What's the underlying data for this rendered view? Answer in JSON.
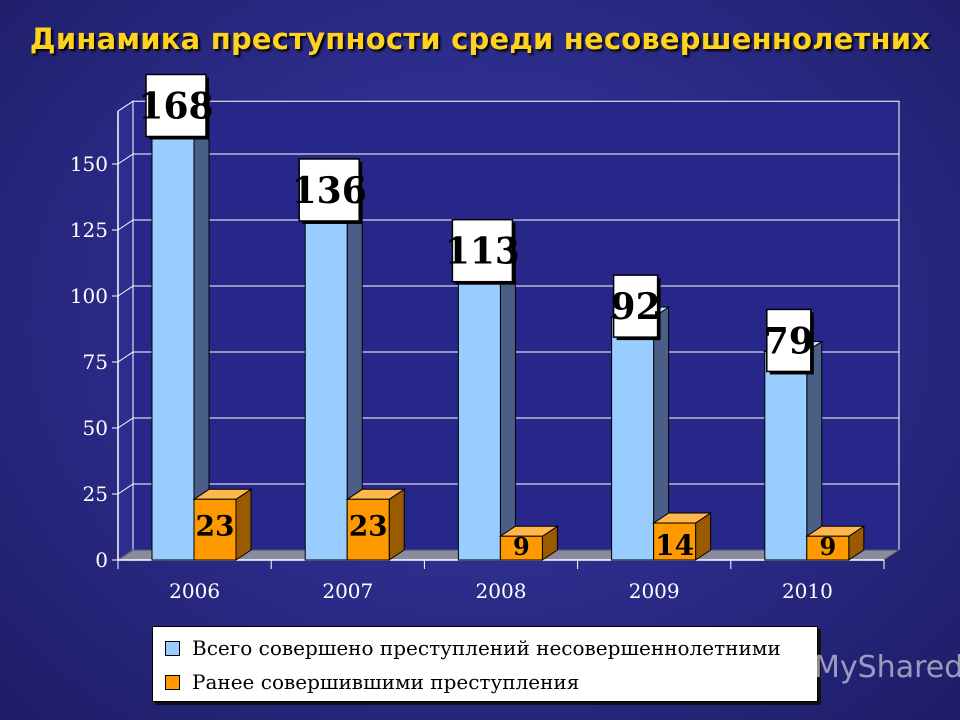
{
  "title": "Динамика преступности среди несовершеннолетних",
  "chart_data": {
    "type": "bar",
    "categories": [
      "2006",
      "2007",
      "2008",
      "2009",
      "2010"
    ],
    "series": [
      {
        "name": "Всего совершено преступлений несовершеннолетними",
        "values": [
          168,
          136,
          113,
          92,
          79
        ],
        "color": "#99ccff"
      },
      {
        "name": "Ранее совершившими преступления",
        "values": [
          23,
          23,
          9,
          14,
          9
        ],
        "color": "#ff9900"
      }
    ],
    "yticks": [
      "0",
      "25",
      "50",
      "75",
      "100",
      "125",
      "150"
    ],
    "ylim": [
      0,
      170
    ],
    "grid": true,
    "legend_position": "bottom"
  },
  "colors": {
    "background": "#2a2a86",
    "title": "#ffd21e",
    "series_total": "#99ccff",
    "series_repeat": "#ff9900"
  },
  "watermark": "MyShared"
}
